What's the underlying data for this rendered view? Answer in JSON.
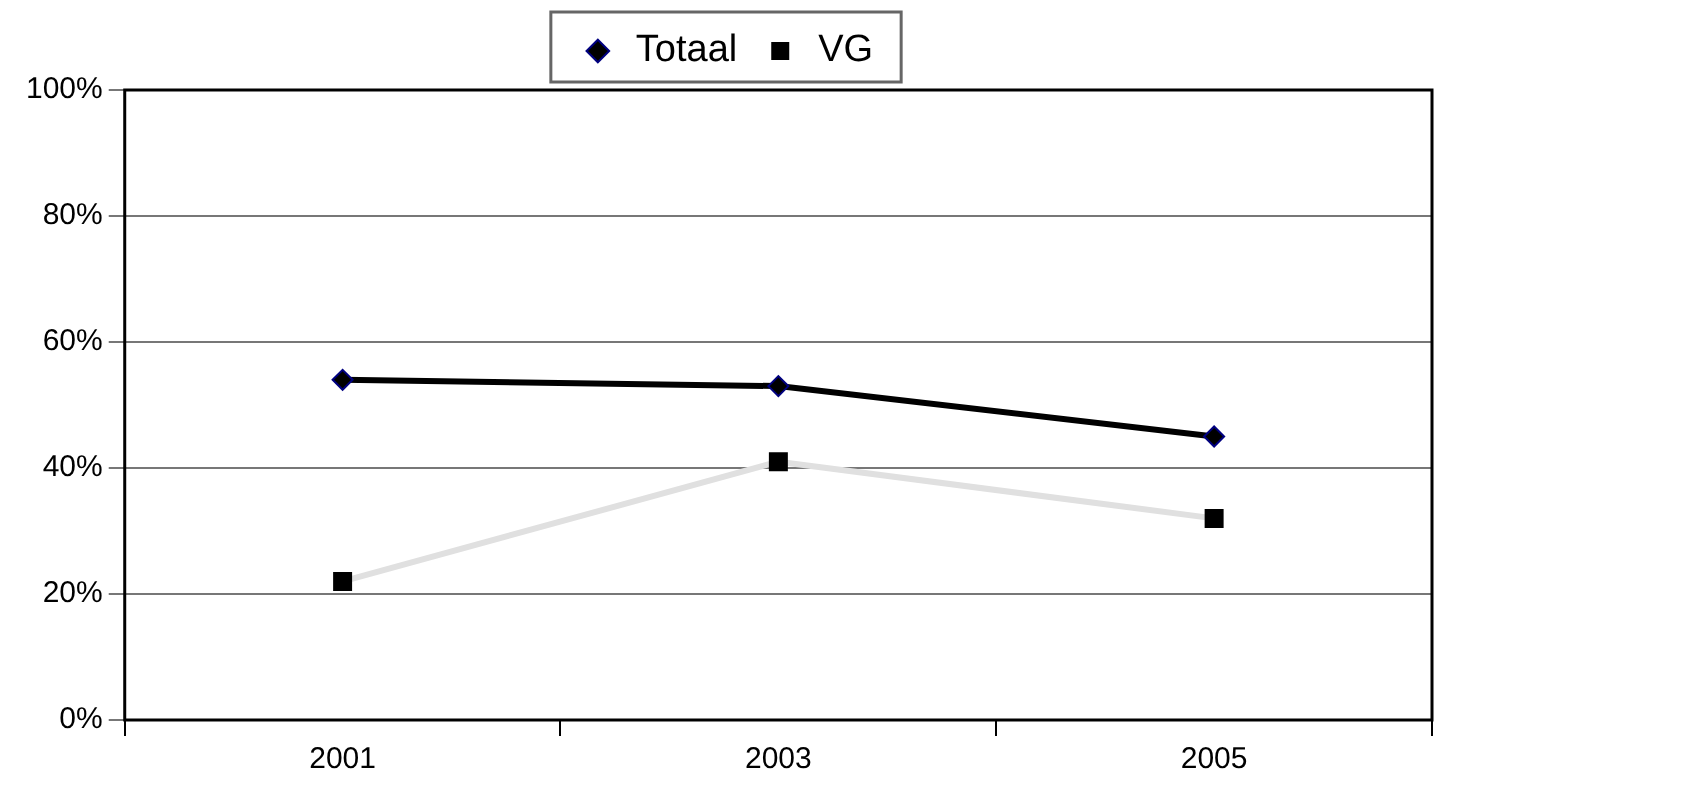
{
  "chart_data": {
    "type": "line",
    "categories": [
      "2001",
      "2003",
      "2005"
    ],
    "series": [
      {
        "name": "Totaal",
        "color": "#000000",
        "marker": "diamond",
        "values": [
          54,
          53,
          45
        ]
      },
      {
        "name": "VG",
        "color": "#e0e0e0",
        "marker": "square",
        "values": [
          22,
          41,
          32
        ]
      }
    ],
    "ylim": [
      0,
      100
    ],
    "yticks": [
      {
        "value": 0,
        "label": "0%"
      },
      {
        "value": 20,
        "label": "20%"
      },
      {
        "value": 40,
        "label": "40%"
      },
      {
        "value": 60,
        "label": "60%"
      },
      {
        "value": 80,
        "label": "80%"
      },
      {
        "value": 100,
        "label": "100%"
      }
    ],
    "grid": "y",
    "legend": "top",
    "line_style": "solid"
  }
}
